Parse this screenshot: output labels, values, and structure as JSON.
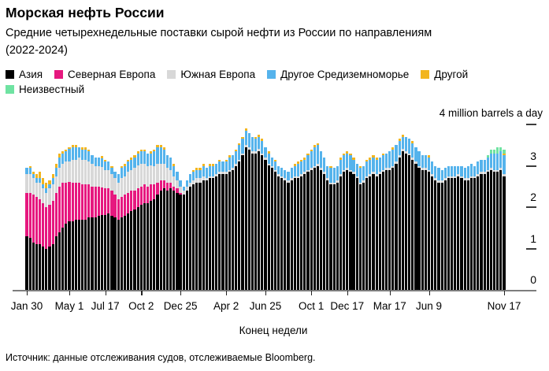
{
  "header": {
    "title": "Морская нефть России",
    "subtitle": "Средние четырехнедельные поставки сырой нефти из России по направлениям (2022-2024)"
  },
  "source_note": "Источник: данные отслеживания судов, отслеживаемые Bloomberg.",
  "colors": {
    "asia": "#000000",
    "north_europe": "#E6187F",
    "south_europe": "#D8D8D8",
    "other_mediterranean": "#55B3EC",
    "other": "#F2B51E",
    "unknown": "#6FE3A2"
  },
  "chart_data": {
    "type": "bar",
    "stacked": true,
    "title": "Морская нефть России",
    "subtitle": "Средние четырехнедельные поставки сырой нефти из России по направлениям (2022-2024)",
    "unit_label": "4 million barrels a day",
    "xlabel": "Конец недели",
    "ylabel": "million barrels a day",
    "ylim": [
      0,
      4
    ],
    "y_ticks": [
      0,
      1,
      2,
      3
    ],
    "n_bars": 147,
    "bar_period": "weekly",
    "x_ticks": [
      {
        "label": "Jan 30",
        "week": 0
      },
      {
        "label": "May 1",
        "week": 13
      },
      {
        "label": "Jul 17",
        "week": 24
      },
      {
        "label": "Oct 2",
        "week": 35
      },
      {
        "label": "Dec 25",
        "week": 47
      },
      {
        "label": "Apr 2",
        "week": 61
      },
      {
        "label": "Jun 25",
        "week": 73
      },
      {
        "label": "Oct 1",
        "week": 87
      },
      {
        "label": "Dec 17",
        "week": 98
      },
      {
        "label": "Mar 17",
        "week": 111
      },
      {
        "label": "Jun 9",
        "week": 123
      },
      {
        "label": "Nov 17",
        "week": 146
      }
    ],
    "legend_position": "top",
    "grid": false,
    "series": [
      {
        "name": "Азия",
        "color": "#000000",
        "values": [
          1.3,
          1.25,
          1.15,
          1.1,
          1.1,
          1.05,
          1.0,
          1.05,
          1.1,
          1.3,
          1.4,
          1.5,
          1.6,
          1.65,
          1.65,
          1.7,
          1.7,
          1.7,
          1.7,
          1.75,
          1.75,
          1.75,
          1.8,
          1.8,
          1.8,
          1.85,
          1.8,
          1.75,
          1.7,
          1.75,
          1.8,
          1.85,
          1.9,
          1.95,
          2.0,
          2.05,
          2.1,
          2.1,
          2.15,
          2.2,
          2.3,
          2.4,
          2.45,
          2.4,
          2.45,
          2.4,
          2.35,
          2.3,
          2.3,
          2.4,
          2.5,
          2.55,
          2.6,
          2.6,
          2.65,
          2.65,
          2.7,
          2.7,
          2.75,
          2.8,
          2.8,
          2.8,
          2.85,
          2.9,
          3.0,
          3.1,
          3.25,
          3.45,
          3.4,
          3.3,
          3.3,
          3.35,
          3.25,
          3.15,
          3.0,
          2.95,
          2.85,
          2.75,
          2.7,
          2.65,
          2.6,
          2.65,
          2.7,
          2.7,
          2.75,
          2.8,
          2.85,
          2.9,
          2.95,
          3.0,
          2.9,
          2.8,
          2.65,
          2.55,
          2.55,
          2.6,
          2.75,
          2.85,
          2.9,
          2.85,
          2.8,
          2.7,
          2.55,
          2.6,
          2.7,
          2.75,
          2.8,
          2.75,
          2.8,
          2.85,
          2.9,
          2.9,
          2.95,
          3.05,
          3.2,
          3.35,
          3.3,
          3.25,
          3.15,
          3.05,
          2.95,
          2.9,
          2.9,
          2.85,
          2.75,
          2.65,
          2.6,
          2.6,
          2.65,
          2.7,
          2.7,
          2.7,
          2.75,
          2.7,
          2.65,
          2.65,
          2.7,
          2.7,
          2.75,
          2.8,
          2.8,
          2.85,
          2.9,
          2.85,
          2.85,
          2.9,
          2.75
        ]
      },
      {
        "name": "Северная Европа",
        "color": "#E6187F",
        "values": [
          1.05,
          1.1,
          1.15,
          1.15,
          1.1,
          1.05,
          1.0,
          1.0,
          1.05,
          1.05,
          1.1,
          1.1,
          1.0,
          0.95,
          0.95,
          0.9,
          0.9,
          0.85,
          0.85,
          0.8,
          0.75,
          0.75,
          0.7,
          0.68,
          0.65,
          0.6,
          0.6,
          0.55,
          0.5,
          0.5,
          0.5,
          0.5,
          0.5,
          0.45,
          0.45,
          0.45,
          0.45,
          0.4,
          0.4,
          0.35,
          0.3,
          0.25,
          0.2,
          0.2,
          0.15,
          0.1,
          0.1,
          0.05,
          0,
          0,
          0,
          0,
          0,
          0,
          0,
          0,
          0,
          0,
          0,
          0,
          0,
          0,
          0,
          0,
          0,
          0,
          0,
          0,
          0,
          0,
          0,
          0,
          0,
          0,
          0,
          0,
          0,
          0,
          0,
          0,
          0,
          0,
          0,
          0,
          0,
          0,
          0,
          0,
          0,
          0,
          0,
          0,
          0,
          0,
          0,
          0,
          0,
          0,
          0,
          0,
          0,
          0,
          0,
          0,
          0,
          0,
          0,
          0,
          0,
          0,
          0,
          0,
          0,
          0,
          0,
          0,
          0,
          0,
          0,
          0,
          0,
          0,
          0,
          0,
          0,
          0,
          0,
          0,
          0,
          0,
          0,
          0,
          0,
          0,
          0,
          0,
          0,
          0,
          0,
          0,
          0,
          0,
          0,
          0,
          0,
          0,
          0
        ]
      },
      {
        "name": "Южная Европа",
        "color": "#D8D8D8",
        "values": [
          0.45,
          0.45,
          0.4,
          0.35,
          0.4,
          0.35,
          0.35,
          0.4,
          0.4,
          0.4,
          0.45,
          0.45,
          0.5,
          0.5,
          0.55,
          0.55,
          0.6,
          0.6,
          0.6,
          0.55,
          0.55,
          0.5,
          0.5,
          0.5,
          0.45,
          0.45,
          0.4,
          0.4,
          0.4,
          0.45,
          0.45,
          0.5,
          0.5,
          0.55,
          0.55,
          0.55,
          0.5,
          0.5,
          0.45,
          0.45,
          0.45,
          0.4,
          0.4,
          0.35,
          0.3,
          0.25,
          0.2,
          0.15,
          0.1,
          0.1,
          0.1,
          0.1,
          0.1,
          0.1,
          0.1,
          0.05,
          0.05,
          0.05,
          0.05,
          0.05,
          0.05,
          0.05,
          0.05,
          0.05,
          0.05,
          0.05,
          0.05,
          0.05,
          0.05,
          0.05,
          0.05,
          0.05,
          0.05,
          0.05,
          0.05,
          0.05,
          0.05,
          0.05,
          0.05,
          0.05,
          0.05,
          0.05,
          0.05,
          0.05,
          0.05,
          0.05,
          0.05,
          0.05,
          0.05,
          0.05,
          0.05,
          0.05,
          0.05,
          0.05,
          0.05,
          0.05,
          0.05,
          0.05,
          0.05,
          0.05,
          0.05,
          0.05,
          0.05,
          0.05,
          0.05,
          0.05,
          0.05,
          0.05,
          0.05,
          0.05,
          0.05,
          0.05,
          0.05,
          0.05,
          0.05,
          0.05,
          0.05,
          0.05,
          0.05,
          0.05,
          0.05,
          0.05,
          0.05,
          0.05,
          0.05,
          0.05,
          0.05,
          0.05,
          0.05,
          0.05,
          0.05,
          0.05,
          0.05,
          0.05,
          0.05,
          0.05,
          0.05,
          0.05,
          0.05,
          0.05,
          0.05,
          0.05,
          0.05,
          0.05,
          0.05,
          0.05,
          0.05
        ]
      },
      {
        "name": "Другое Средиземноморье",
        "color": "#55B3EC",
        "values": [
          0.15,
          0.15,
          0.1,
          0.1,
          0.1,
          0.1,
          0.1,
          0.1,
          0.15,
          0.2,
          0.25,
          0.25,
          0.25,
          0.3,
          0.3,
          0.3,
          0.25,
          0.25,
          0.25,
          0.25,
          0.2,
          0.2,
          0.2,
          0.2,
          0.2,
          0.2,
          0.15,
          0.15,
          0.2,
          0.25,
          0.25,
          0.25,
          0.25,
          0.25,
          0.3,
          0.3,
          0.3,
          0.3,
          0.3,
          0.35,
          0.4,
          0.4,
          0.35,
          0.3,
          0.3,
          0.25,
          0.2,
          0.15,
          0.1,
          0.15,
          0.2,
          0.2,
          0.2,
          0.2,
          0.25,
          0.25,
          0.25,
          0.25,
          0.25,
          0.25,
          0.25,
          0.25,
          0.3,
          0.3,
          0.3,
          0.35,
          0.35,
          0.35,
          0.35,
          0.35,
          0.3,
          0.3,
          0.3,
          0.25,
          0.25,
          0.2,
          0.2,
          0.2,
          0.2,
          0.2,
          0.2,
          0.25,
          0.25,
          0.3,
          0.3,
          0.3,
          0.35,
          0.4,
          0.45,
          0.45,
          0.4,
          0.35,
          0.3,
          0.35,
          0.35,
          0.35,
          0.35,
          0.35,
          0.35,
          0.35,
          0.3,
          0.3,
          0.35,
          0.35,
          0.35,
          0.35,
          0.35,
          0.35,
          0.35,
          0.35,
          0.35,
          0.4,
          0.4,
          0.4,
          0.35,
          0.3,
          0.35,
          0.35,
          0.35,
          0.35,
          0.35,
          0.3,
          0.3,
          0.3,
          0.3,
          0.3,
          0.3,
          0.25,
          0.25,
          0.25,
          0.25,
          0.25,
          0.2,
          0.25,
          0.25,
          0.3,
          0.3,
          0.25,
          0.3,
          0.3,
          0.3,
          0.3,
          0.35,
          0.4,
          0.4,
          0.4,
          0.45
        ]
      },
      {
        "name": "Другой",
        "color": "#F2B51E",
        "values": [
          0,
          0.05,
          0.05,
          0.1,
          0.15,
          0.15,
          0.15,
          0.1,
          0.1,
          0.1,
          0.1,
          0.05,
          0.05,
          0.05,
          0.05,
          0.05,
          0,
          0.05,
          0.05,
          0.05,
          0,
          0,
          0,
          0.05,
          0.05,
          0,
          0.05,
          0,
          0,
          0.05,
          0.05,
          0.05,
          0.05,
          0.05,
          0.05,
          0.05,
          0.05,
          0,
          0.05,
          0.05,
          0.05,
          0.05,
          0.05,
          0,
          0,
          0.05,
          0,
          0,
          0,
          0,
          0,
          0.05,
          0.05,
          0.05,
          0.05,
          0,
          0.05,
          0.05,
          0,
          0.05,
          0,
          0.05,
          0.05,
          0,
          0.05,
          0.05,
          0.05,
          0.05,
          0,
          0,
          0.05,
          0.05,
          0.05,
          0,
          0.05,
          0,
          0.05,
          0,
          0,
          0,
          0,
          0,
          0.05,
          0.05,
          0.05,
          0.05,
          0.05,
          0.05,
          0.05,
          0.05,
          0,
          0,
          0,
          0.05,
          0,
          0,
          0.05,
          0.05,
          0.05,
          0.05,
          0.05,
          0,
          0.05,
          0,
          0.05,
          0.05,
          0.05,
          0.05,
          0,
          0.05,
          0,
          0,
          0.05,
          0,
          0.05,
          0.05,
          0,
          0,
          0.05,
          0,
          0,
          0,
          0,
          0.05,
          0,
          0,
          0,
          0,
          0,
          0,
          0,
          0,
          0,
          0,
          0,
          0,
          0,
          0,
          0,
          0,
          0,
          0,
          0,
          0,
          0,
          0,
          0.05
        ]
      },
      {
        "name": "Неизвестный",
        "color": "#6FE3A2",
        "values": [
          0,
          0,
          0,
          0,
          0,
          0,
          0,
          0,
          0,
          0,
          0,
          0,
          0,
          0,
          0,
          0,
          0,
          0,
          0,
          0,
          0,
          0,
          0,
          0,
          0,
          0,
          0,
          0,
          0,
          0,
          0,
          0,
          0,
          0,
          0,
          0,
          0,
          0,
          0,
          0,
          0,
          0,
          0,
          0,
          0,
          0,
          0,
          0,
          0,
          0,
          0,
          0,
          0,
          0,
          0,
          0,
          0,
          0,
          0,
          0,
          0,
          0,
          0,
          0,
          0,
          0,
          0,
          0,
          0,
          0,
          0,
          0,
          0,
          0,
          0,
          0,
          0,
          0,
          0,
          0,
          0,
          0,
          0,
          0,
          0,
          0,
          0,
          0,
          0,
          0,
          0,
          0,
          0,
          0,
          0,
          0,
          0,
          0,
          0,
          0,
          0,
          0,
          0,
          0,
          0,
          0,
          0,
          0,
          0,
          0,
          0,
          0,
          0,
          0,
          0,
          0,
          0,
          0,
          0,
          0,
          0,
          0,
          0,
          0,
          0,
          0,
          0,
          0,
          0,
          0,
          0,
          0,
          0,
          0,
          0,
          0,
          0,
          0,
          0,
          0,
          0,
          0.05,
          0.1,
          0.1,
          0.15,
          0.1,
          0.1
        ]
      }
    ]
  }
}
